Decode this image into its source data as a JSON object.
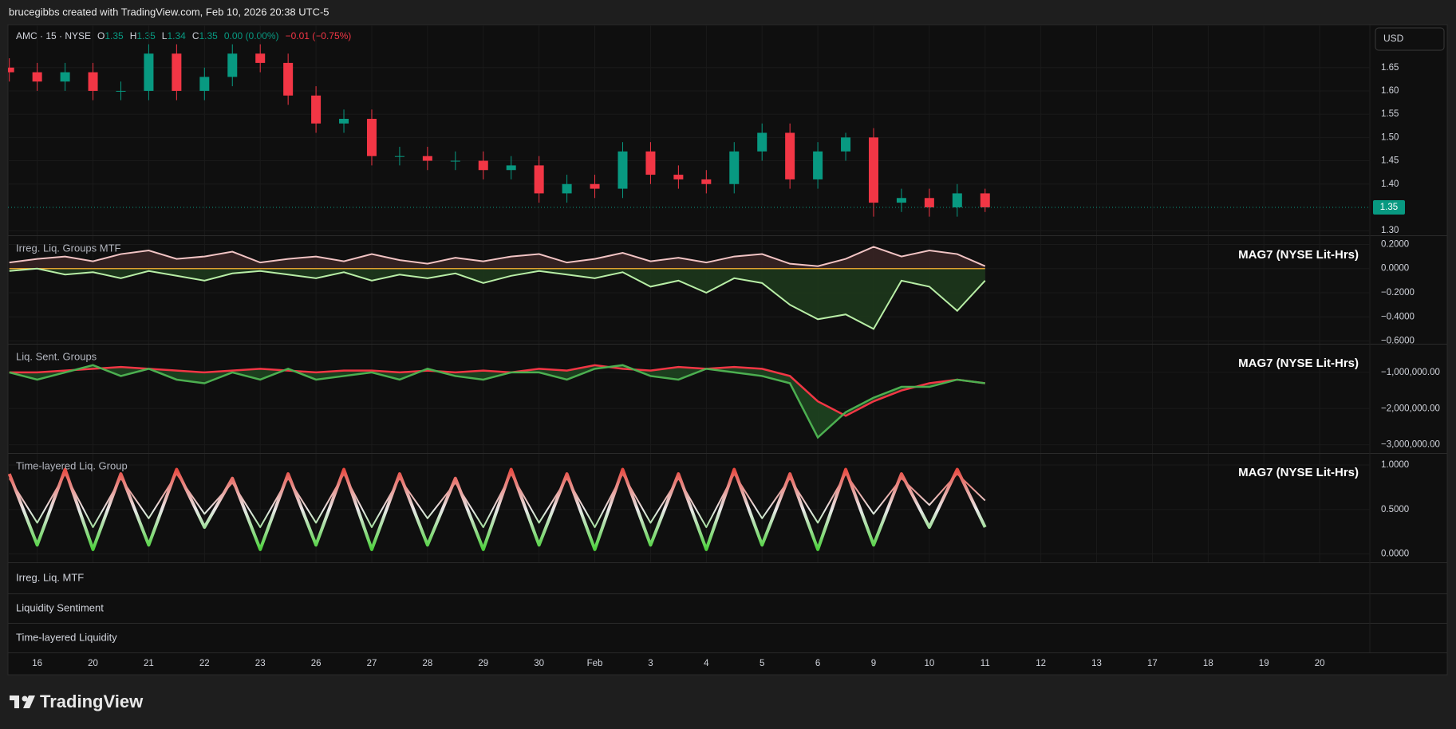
{
  "header": {
    "attribution": "brucegibbs created with TradingView.com, Feb 10, 2026 20:38 UTC-5"
  },
  "currency": "USD",
  "legend": {
    "symbol": "AMC · 15 · NYSE",
    "open_label": "O",
    "open": "1.35",
    "high_label": "H",
    "high": "1.35",
    "low_label": "L",
    "low": "1.34",
    "close_label": "C",
    "close": "1.35",
    "change": "0.00 (0.00%)",
    "change_session": "−0.01 (−0.75%)"
  },
  "time_axis": {
    "xlim": [
      -0.5,
      23.9
    ],
    "xticks": [
      {
        "value": 0,
        "label": "16"
      },
      {
        "value": 1,
        "label": "20"
      },
      {
        "value": 2,
        "label": "21"
      },
      {
        "value": 3,
        "label": "22"
      },
      {
        "value": 4,
        "label": "23"
      },
      {
        "value": 5,
        "label": "26"
      },
      {
        "value": 6,
        "label": "27"
      },
      {
        "value": 7,
        "label": "28"
      },
      {
        "value": 8,
        "label": "29"
      },
      {
        "value": 9,
        "label": "30"
      },
      {
        "value": 10,
        "label": "Feb"
      },
      {
        "value": 11,
        "label": "3"
      },
      {
        "value": 12,
        "label": "4"
      },
      {
        "value": 13,
        "label": "5"
      },
      {
        "value": 14,
        "label": "6"
      },
      {
        "value": 15,
        "label": "9"
      },
      {
        "value": 16,
        "label": "10"
      },
      {
        "value": 17,
        "label": "11"
      },
      {
        "value": 18,
        "label": "12"
      },
      {
        "value": 19,
        "label": "13"
      },
      {
        "value": 20,
        "label": "17"
      },
      {
        "value": 21,
        "label": "18"
      },
      {
        "value": 22,
        "label": "19"
      },
      {
        "value": 23,
        "label": "20"
      }
    ]
  },
  "chart_data": [
    {
      "type": "candlestick",
      "up_color": "#089981",
      "down_color": "#f23645",
      "x": [
        -0.5,
        0,
        0.5,
        1,
        1.5,
        2,
        2.5,
        3,
        3.5,
        4,
        4.5,
        5,
        5.5,
        6,
        6.5,
        7,
        7.5,
        8,
        8.5,
        9,
        9.5,
        10,
        10.5,
        11,
        11.5,
        12,
        12.5,
        13,
        13.5,
        14,
        14.5,
        15,
        15.5,
        16,
        16.5,
        17
      ],
      "open": [
        1.65,
        1.64,
        1.62,
        1.64,
        1.6,
        1.6,
        1.68,
        1.6,
        1.63,
        1.68,
        1.66,
        1.59,
        1.53,
        1.54,
        1.46,
        1.46,
        1.45,
        1.45,
        1.43,
        1.44,
        1.38,
        1.4,
        1.39,
        1.47,
        1.42,
        1.41,
        1.4,
        1.47,
        1.51,
        1.41,
        1.47,
        1.5,
        1.36,
        1.37,
        1.35,
        1.38
      ],
      "high": [
        1.67,
        1.66,
        1.66,
        1.66,
        1.62,
        1.7,
        1.7,
        1.65,
        1.7,
        1.7,
        1.68,
        1.61,
        1.56,
        1.56,
        1.48,
        1.48,
        1.47,
        1.47,
        1.46,
        1.46,
        1.42,
        1.42,
        1.49,
        1.49,
        1.44,
        1.43,
        1.49,
        1.53,
        1.53,
        1.49,
        1.51,
        1.52,
        1.39,
        1.39,
        1.4,
        1.39
      ],
      "low": [
        1.62,
        1.6,
        1.6,
        1.58,
        1.58,
        1.58,
        1.58,
        1.58,
        1.61,
        1.64,
        1.57,
        1.51,
        1.51,
        1.44,
        1.44,
        1.43,
        1.43,
        1.41,
        1.41,
        1.36,
        1.36,
        1.37,
        1.37,
        1.4,
        1.39,
        1.38,
        1.38,
        1.45,
        1.39,
        1.39,
        1.45,
        1.33,
        1.34,
        1.33,
        1.33,
        1.34
      ],
      "close": [
        1.64,
        1.62,
        1.64,
        1.6,
        1.6,
        1.68,
        1.6,
        1.63,
        1.68,
        1.66,
        1.59,
        1.53,
        1.54,
        1.46,
        1.46,
        1.45,
        1.45,
        1.43,
        1.44,
        1.38,
        1.4,
        1.39,
        1.47,
        1.42,
        1.41,
        1.4,
        1.47,
        1.51,
        1.41,
        1.47,
        1.5,
        1.36,
        1.37,
        1.35,
        1.38,
        1.35
      ],
      "last_price": {
        "value": 1.35,
        "label": "1.35"
      },
      "ylim": [
        1.29,
        1.742
      ],
      "yticks": [
        {
          "value": 1.3,
          "label": "1.30"
        },
        {
          "value": 1.4,
          "label": "1.40"
        },
        {
          "value": 1.45,
          "label": "1.45"
        },
        {
          "value": 1.5,
          "label": "1.50"
        },
        {
          "value": 1.55,
          "label": "1.55"
        },
        {
          "value": 1.6,
          "label": "1.60"
        },
        {
          "value": 1.65,
          "label": "1.65"
        }
      ]
    },
    {
      "type": "band-area",
      "title": "Irreg. Liq. Groups MTF",
      "annotation": "MAG7 (NYSE Lit-Hrs)",
      "baseline": 0,
      "baseline_color": "#e0a030",
      "x": [
        -0.5,
        0,
        0.5,
        1,
        1.5,
        2,
        2.5,
        3,
        3.5,
        4,
        4.5,
        5,
        5.5,
        6,
        6.5,
        7,
        7.5,
        8,
        8.5,
        9,
        9.5,
        10,
        10.5,
        11,
        11.5,
        12,
        12.5,
        13,
        13.5,
        14,
        14.5,
        15,
        15.5,
        16,
        16.5,
        17
      ],
      "series": [
        {
          "color": "#f2c4c4",
          "fill": "#3a2424",
          "values": [
            0.05,
            0.08,
            0.1,
            0.06,
            0.12,
            0.15,
            0.08,
            0.1,
            0.14,
            0.05,
            0.08,
            0.1,
            0.06,
            0.12,
            0.07,
            0.04,
            0.09,
            0.06,
            0.1,
            0.12,
            0.05,
            0.08,
            0.13,
            0.06,
            0.09,
            0.05,
            0.1,
            0.12,
            0.04,
            0.02,
            0.08,
            0.18,
            0.1,
            0.15,
            0.12,
            0.02
          ]
        },
        {
          "color": "#b8eea6",
          "fill": "#1d3a1c",
          "values": [
            -0.02,
            0.0,
            -0.05,
            -0.03,
            -0.08,
            -0.02,
            -0.06,
            -0.1,
            -0.04,
            -0.02,
            -0.05,
            -0.08,
            -0.03,
            -0.1,
            -0.05,
            -0.08,
            -0.04,
            -0.12,
            -0.06,
            -0.02,
            -0.05,
            -0.08,
            -0.03,
            -0.15,
            -0.1,
            -0.2,
            -0.08,
            -0.12,
            -0.3,
            -0.42,
            -0.38,
            -0.5,
            -0.1,
            -0.15,
            -0.35,
            -0.1
          ]
        }
      ],
      "ylim": [
        -0.623,
        0.269
      ],
      "yticks": [
        {
          "value": 0.2,
          "label": "0.2000"
        },
        {
          "value": 0,
          "label": "0.0000"
        },
        {
          "value": -0.2,
          "label": "−0.2000"
        },
        {
          "value": -0.4,
          "label": "−0.4000"
        },
        {
          "value": -0.6,
          "label": "−0.6000"
        }
      ]
    },
    {
      "type": "crossing-lines",
      "title": "Liq. Sent. Groups",
      "annotation": "MAG7 (NYSE Lit-Hrs)",
      "fill": "#1f4a22",
      "x": [
        -0.5,
        0,
        0.5,
        1,
        1.5,
        2,
        2.5,
        3,
        3.5,
        4,
        4.5,
        5,
        5.5,
        6,
        6.5,
        7,
        7.5,
        8,
        8.5,
        9,
        9.5,
        10,
        10.5,
        11,
        11.5,
        12,
        12.5,
        13,
        13.5,
        14,
        14.5,
        15,
        15.5,
        16,
        16.5,
        17
      ],
      "series": [
        {
          "color": "#f23645",
          "values": [
            -1000000,
            -1000000,
            -950000,
            -900000,
            -850000,
            -900000,
            -950000,
            -1000000,
            -950000,
            -900000,
            -950000,
            -1000000,
            -950000,
            -950000,
            -1000000,
            -950000,
            -1000000,
            -950000,
            -1000000,
            -900000,
            -950000,
            -800000,
            -900000,
            -950000,
            -850000,
            -900000,
            -850000,
            -900000,
            -1100000,
            -1800000,
            -2200000,
            -1800000,
            -1500000,
            -1300000,
            -1200000,
            -1300000
          ]
        },
        {
          "color": "#4caf50",
          "values": [
            -1000000,
            -1200000,
            -1000000,
            -800000,
            -1100000,
            -900000,
            -1200000,
            -1300000,
            -1000000,
            -1200000,
            -900000,
            -1200000,
            -1100000,
            -1000000,
            -1200000,
            -900000,
            -1100000,
            -1200000,
            -1000000,
            -1000000,
            -1200000,
            -900000,
            -800000,
            -1100000,
            -1200000,
            -900000,
            -1000000,
            -1100000,
            -1300000,
            -2800000,
            -2100000,
            -1700000,
            -1400000,
            -1400000,
            -1200000,
            -1300000
          ]
        }
      ],
      "ylim": [
        -3230000,
        -230000
      ],
      "yticks": [
        {
          "value": -1000000,
          "label": "−1,000,000.00"
        },
        {
          "value": -2000000,
          "label": "−2,000,000.00"
        },
        {
          "value": -3000000,
          "label": "−3,000,000.00"
        }
      ]
    },
    {
      "type": "gradient-line",
      "title": "Time-layered Liq. Group",
      "annotation": "MAG7 (NYSE Lit-Hrs)",
      "color_scale": [
        "#3ccf2a",
        "#e8e8e8",
        "#e8392f"
      ],
      "x": [
        -0.5,
        0,
        0.5,
        1,
        1.5,
        2,
        2.5,
        3,
        3.5,
        4,
        4.5,
        5,
        5.5,
        6,
        6.5,
        7,
        7.5,
        8,
        8.5,
        9,
        9.5,
        10,
        10.5,
        11,
        11.5,
        12,
        12.5,
        13,
        13.5,
        14,
        14.5,
        15,
        15.5,
        16,
        16.5,
        17
      ],
      "series": [
        {
          "width": 4,
          "values": [
            0.9,
            0.1,
            0.95,
            0.05,
            0.9,
            0.1,
            0.95,
            0.3,
            0.85,
            0.05,
            0.9,
            0.1,
            0.95,
            0.05,
            0.9,
            0.1,
            0.85,
            0.05,
            0.95,
            0.1,
            0.9,
            0.05,
            0.95,
            0.1,
            0.9,
            0.05,
            0.95,
            0.1,
            0.9,
            0.05,
            0.95,
            0.1,
            0.9,
            0.3,
            0.95,
            0.3
          ]
        },
        {
          "width": 2,
          "values": [
            0.85,
            0.35,
            0.9,
            0.3,
            0.85,
            0.4,
            0.9,
            0.45,
            0.8,
            0.3,
            0.85,
            0.35,
            0.9,
            0.3,
            0.85,
            0.4,
            0.8,
            0.3,
            0.9,
            0.35,
            0.85,
            0.3,
            0.9,
            0.35,
            0.85,
            0.3,
            0.9,
            0.4,
            0.85,
            0.35,
            0.9,
            0.45,
            0.85,
            0.55,
            0.9,
            0.6
          ]
        }
      ],
      "ylim": [
        -0.094,
        1.125
      ],
      "yticks": [
        {
          "value": 1,
          "label": "1.0000"
        },
        {
          "value": 0.5,
          "label": "0.5000"
        },
        {
          "value": 0,
          "label": "0.0000"
        }
      ]
    }
  ],
  "collapsed_panes": [
    "Irreg. Liq. MTF",
    "Liquidity Sentiment",
    "Time-layered Liquidity"
  ],
  "logo": "TradingView"
}
